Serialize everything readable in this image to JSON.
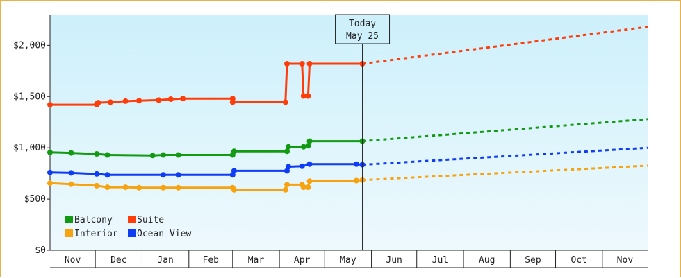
{
  "chart_data": {
    "type": "line",
    "x_type": "date",
    "ylim": [
      0,
      2300
    ],
    "y_ticks": [
      {
        "value": 0,
        "label": "$0"
      },
      {
        "value": 500,
        "label": "$500"
      },
      {
        "value": 1000,
        "label": "$1,000"
      },
      {
        "value": 1500,
        "label": "$1,500"
      },
      {
        "value": 2000,
        "label": "$2,000"
      }
    ],
    "x_labels": [
      "Nov",
      "Dec",
      "Jan",
      "Feb",
      "Mar",
      "Apr",
      "May",
      "Jun",
      "Jul",
      "Aug",
      "Sep",
      "Oct",
      "Nov"
    ],
    "today_marker": {
      "line1": "Today",
      "line2": "May 25",
      "date": "2024-05-25"
    },
    "grid": false,
    "legend_position": "bottom-left",
    "colors": {
      "Balcony": "#129a12",
      "Suite": "#ff3d0a",
      "Interior": "#f7a20f",
      "Ocean View": "#0f3cf5",
      "plot_gradient_top": "#cdf0fb",
      "plot_gradient_bottom": "#eef9fd",
      "border": "#e8b24a"
    },
    "series": [
      {
        "name": "Suite",
        "points": [
          [
            "2023-10-31",
            1420
          ],
          [
            "2023-12-01",
            1420
          ],
          [
            "2023-12-01",
            1430
          ],
          [
            "2023-12-02",
            1440
          ],
          [
            "2023-12-10",
            1445
          ],
          [
            "2023-12-20",
            1455
          ],
          [
            "2023-12-29",
            1460
          ],
          [
            "2024-01-11",
            1465
          ],
          [
            "2024-01-19",
            1475
          ],
          [
            "2024-01-27",
            1480
          ],
          [
            "2024-02-29",
            1480
          ],
          [
            "2024-02-29",
            1445
          ],
          [
            "2024-04-04",
            1445
          ],
          [
            "2024-04-05",
            1820
          ],
          [
            "2024-04-15",
            1820
          ],
          [
            "2024-04-16",
            1505
          ],
          [
            "2024-04-19",
            1505
          ],
          [
            "2024-04-20",
            1820
          ],
          [
            "2024-05-25",
            1820
          ]
        ],
        "forecast": [
          [
            "2024-05-25",
            1820
          ],
          [
            "2024-11-30",
            2180
          ]
        ]
      },
      {
        "name": "Balcony",
        "points": [
          [
            "2023-10-31",
            955
          ],
          [
            "2023-11-14",
            950
          ],
          [
            "2023-12-01",
            940
          ],
          [
            "2023-12-08",
            930
          ],
          [
            "2024-01-07",
            925
          ],
          [
            "2024-01-14",
            930
          ],
          [
            "2024-01-24",
            930
          ],
          [
            "2024-02-29",
            930
          ],
          [
            "2024-03-01",
            965
          ],
          [
            "2024-04-05",
            965
          ],
          [
            "2024-04-06",
            1010
          ],
          [
            "2024-04-16",
            1010
          ],
          [
            "2024-04-19",
            1020
          ],
          [
            "2024-04-20",
            1065
          ],
          [
            "2024-05-25",
            1065
          ]
        ],
        "forecast": [
          [
            "2024-05-25",
            1065
          ],
          [
            "2024-11-30",
            1280
          ]
        ]
      },
      {
        "name": "Ocean View",
        "points": [
          [
            "2023-10-31",
            760
          ],
          [
            "2023-11-14",
            755
          ],
          [
            "2023-12-01",
            745
          ],
          [
            "2023-12-08",
            735
          ],
          [
            "2024-01-14",
            735
          ],
          [
            "2024-01-24",
            735
          ],
          [
            "2024-02-29",
            735
          ],
          [
            "2024-03-01",
            775
          ],
          [
            "2024-04-05",
            775
          ],
          [
            "2024-04-06",
            815
          ],
          [
            "2024-04-15",
            820
          ],
          [
            "2024-04-20",
            840
          ],
          [
            "2024-05-21",
            840
          ],
          [
            "2024-05-25",
            835
          ]
        ],
        "forecast": [
          [
            "2024-05-25",
            835
          ],
          [
            "2024-11-30",
            1000
          ]
        ]
      },
      {
        "name": "Interior",
        "points": [
          [
            "2023-10-31",
            655
          ],
          [
            "2023-11-14",
            645
          ],
          [
            "2023-12-01",
            630
          ],
          [
            "2023-12-08",
            615
          ],
          [
            "2023-12-20",
            615
          ],
          [
            "2023-12-29",
            610
          ],
          [
            "2024-01-14",
            610
          ],
          [
            "2024-01-24",
            610
          ],
          [
            "2024-02-29",
            610
          ],
          [
            "2024-03-01",
            590
          ],
          [
            "2024-04-04",
            590
          ],
          [
            "2024-04-05",
            640
          ],
          [
            "2024-04-15",
            640
          ],
          [
            "2024-04-16",
            615
          ],
          [
            "2024-04-19",
            615
          ],
          [
            "2024-04-20",
            675
          ],
          [
            "2024-05-21",
            680
          ],
          [
            "2024-05-25",
            685
          ]
        ],
        "forecast": [
          [
            "2024-05-25",
            685
          ],
          [
            "2024-11-30",
            825
          ]
        ]
      }
    ],
    "legend_order": [
      "Balcony",
      "Suite",
      "Interior",
      "Ocean View"
    ]
  }
}
